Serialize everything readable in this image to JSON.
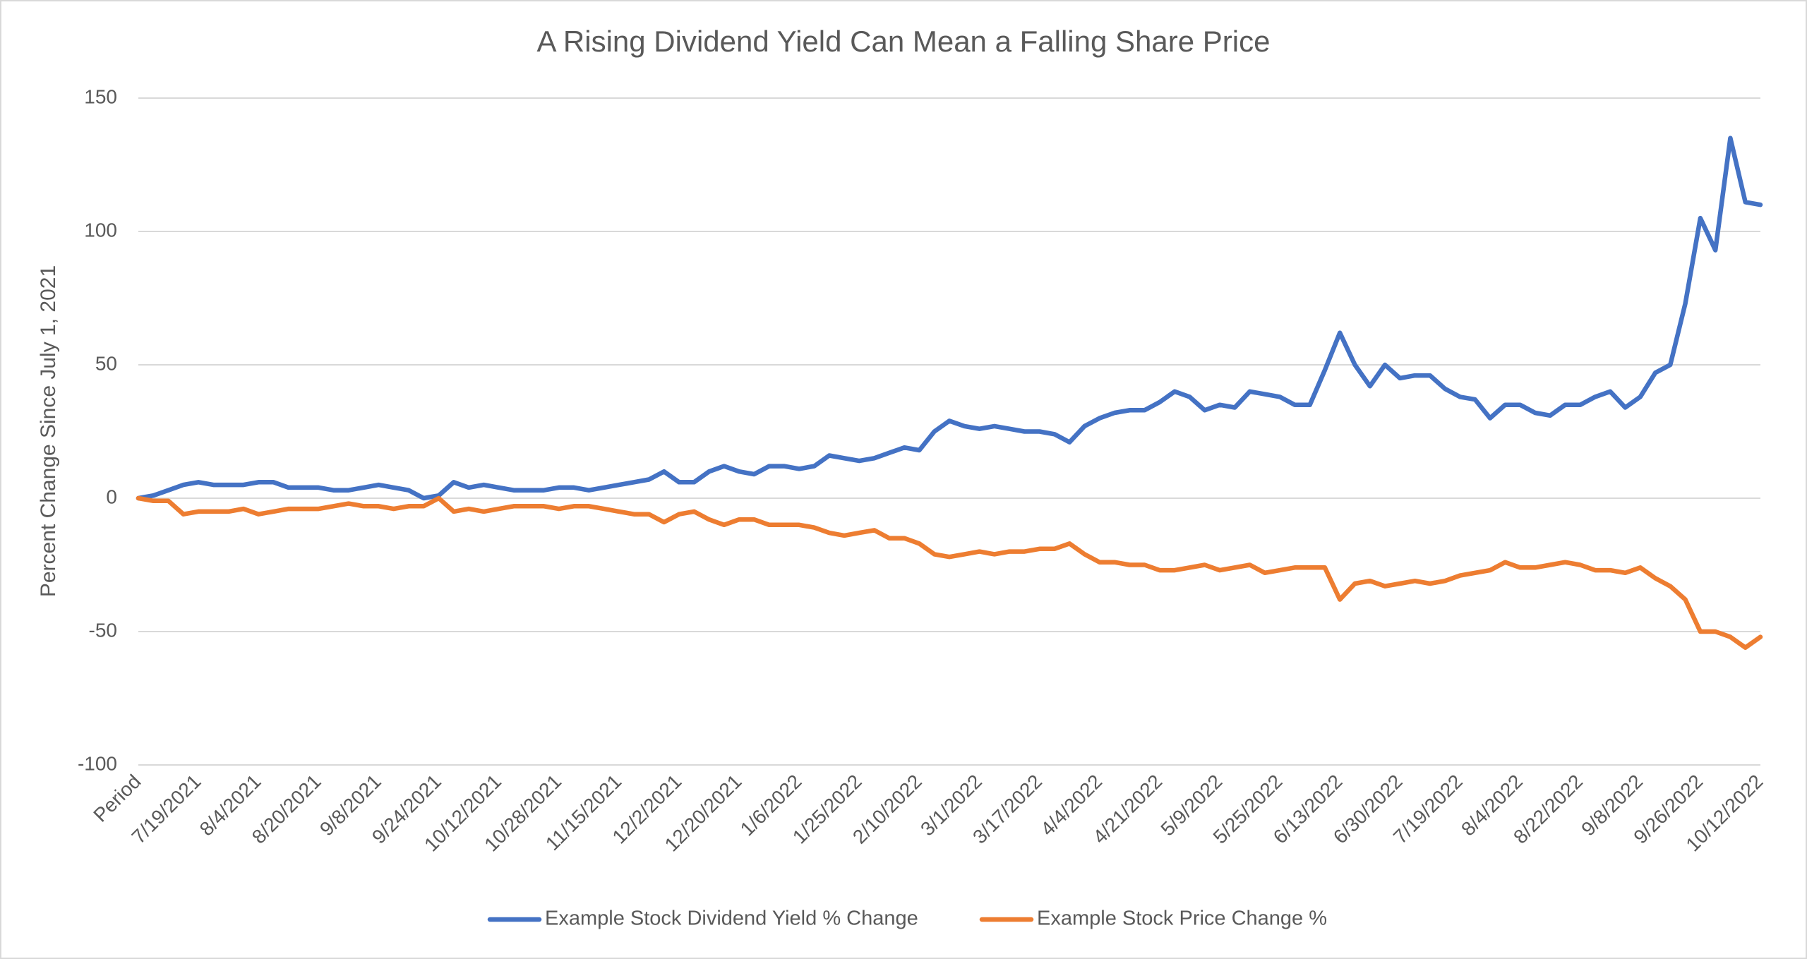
{
  "chart_data": {
    "type": "line",
    "title": "A Rising Dividend Yield Can Mean a Falling Share Price",
    "y_label": "Percent Change Since July 1, 2021",
    "categories": [
      "Period",
      null,
      null,
      null,
      "7/19/2021",
      null,
      null,
      null,
      "8/4/2021",
      null,
      null,
      null,
      "8/20/2021",
      null,
      null,
      null,
      "9/8/2021",
      null,
      null,
      null,
      "9/24/2021",
      null,
      null,
      null,
      "10/12/2021",
      null,
      null,
      null,
      "10/28/2021",
      null,
      null,
      null,
      "11/15/2021",
      null,
      null,
      null,
      "12/2/2021",
      null,
      null,
      null,
      "12/20/2021",
      null,
      null,
      null,
      "1/6/2022",
      null,
      null,
      null,
      "1/25/2022",
      null,
      null,
      null,
      "2/10/2022",
      null,
      null,
      null,
      "3/1/2022",
      null,
      null,
      null,
      "3/17/2022",
      null,
      null,
      null,
      "4/4/2022",
      null,
      null,
      null,
      "4/21/2022",
      null,
      null,
      null,
      "5/9/2022",
      null,
      null,
      null,
      "5/25/2022",
      null,
      null,
      null,
      "6/13/2022",
      null,
      null,
      null,
      "6/30/2022",
      null,
      null,
      null,
      "7/19/2022",
      null,
      null,
      null,
      "8/4/2022",
      null,
      null,
      null,
      "8/22/2022",
      null,
      null,
      null,
      "9/8/2022",
      null,
      null,
      null,
      "9/26/2022",
      null,
      null,
      null,
      "10/12/2022"
    ],
    "series": [
      {
        "name": "Example Stock Dividend Yield % Change",
        "color": "#4472c4",
        "values": [
          0,
          1,
          3,
          5,
          6,
          5,
          5,
          5,
          6,
          6,
          4,
          4,
          4,
          3,
          3,
          4,
          5,
          4,
          3,
          0,
          1,
          6,
          4,
          5,
          4,
          3,
          3,
          3,
          4,
          4,
          3,
          4,
          5,
          6,
          7,
          10,
          6,
          6,
          10,
          12,
          10,
          9,
          12,
          12,
          11,
          12,
          16,
          15,
          14,
          15,
          17,
          19,
          18,
          25,
          29,
          27,
          26,
          27,
          26,
          25,
          25,
          24,
          21,
          27,
          30,
          32,
          33,
          33,
          36,
          40,
          38,
          33,
          35,
          34,
          40,
          39,
          38,
          35,
          35,
          48,
          62,
          50,
          42,
          50,
          45,
          46,
          46,
          41,
          38,
          37,
          30,
          35,
          35,
          32,
          31,
          35,
          35,
          38,
          40,
          34,
          38,
          47,
          50,
          73,
          105,
          93,
          135,
          111,
          110
        ]
      },
      {
        "name": "Example Stock Price Change %",
        "color": "#ed7d31",
        "values": [
          0,
          -1,
          -1,
          -6,
          -5,
          -5,
          -5,
          -4,
          -6,
          -5,
          -4,
          -4,
          -4,
          -3,
          -2,
          -3,
          -3,
          -4,
          -3,
          -3,
          0,
          -5,
          -4,
          -5,
          -4,
          -3,
          -3,
          -3,
          -4,
          -3,
          -3,
          -4,
          -5,
          -6,
          -6,
          -9,
          -6,
          -5,
          -8,
          -10,
          -8,
          -8,
          -10,
          -10,
          -10,
          -11,
          -13,
          -14,
          -13,
          -12,
          -15,
          -15,
          -17,
          -21,
          -22,
          -21,
          -20,
          -21,
          -20,
          -20,
          -19,
          -19,
          -17,
          -21,
          -24,
          -24,
          -25,
          -25,
          -27,
          -27,
          -26,
          -25,
          -27,
          -26,
          -25,
          -28,
          -27,
          -26,
          -26,
          -26,
          -38,
          -32,
          -31,
          -33,
          -32,
          -31,
          -32,
          -31,
          -29,
          -28,
          -27,
          -24,
          -26,
          -26,
          -25,
          -24,
          -25,
          -27,
          -27,
          -28,
          -26,
          -30,
          -33,
          -38,
          -50,
          -50,
          -52,
          -56,
          -52
        ]
      }
    ],
    "ylim": [
      -100,
      150
    ],
    "yticks": [
      -100,
      -50,
      0,
      50,
      100,
      150
    ],
    "grid": true,
    "legend": "bottom"
  }
}
